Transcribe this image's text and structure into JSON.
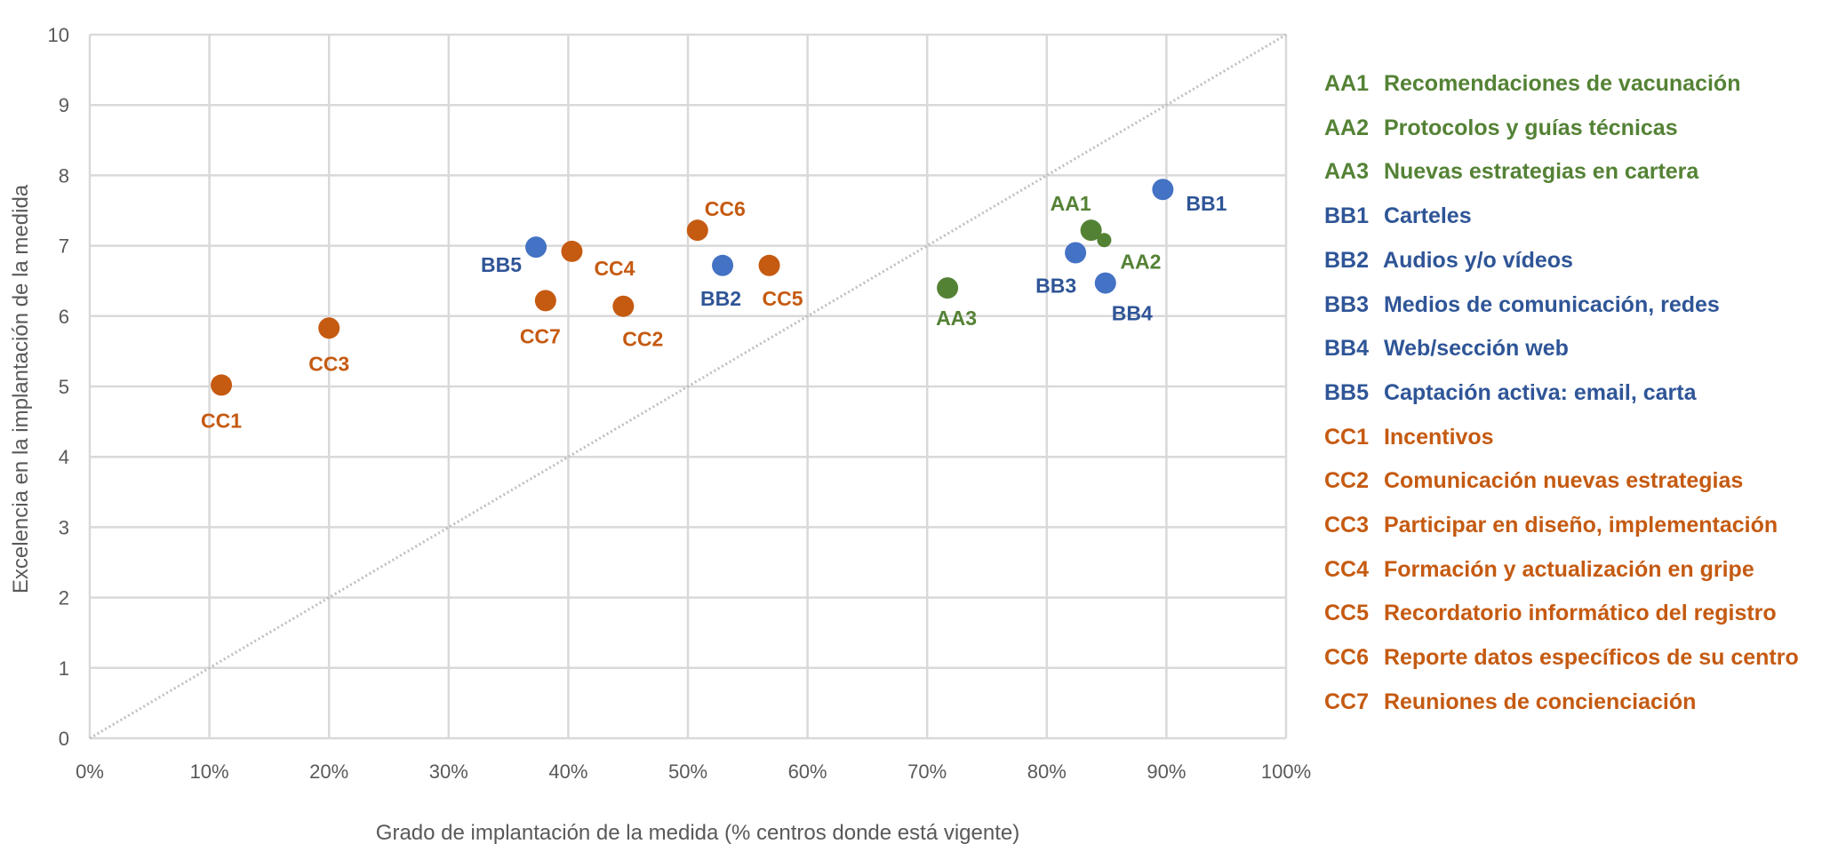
{
  "chart_data": {
    "type": "scatter",
    "xlabel": "Grado de implantación de la medida (% centros donde está vigente)",
    "ylabel": "Excelencia en la implantación de la medida",
    "xlim": [
      0,
      100
    ],
    "ylim": [
      0,
      10
    ],
    "x_ticks": [
      "0%",
      "10%",
      "20%",
      "30%",
      "40%",
      "50%",
      "60%",
      "70%",
      "80%",
      "90%",
      "100%"
    ],
    "y_ticks": [
      "0",
      "1",
      "2",
      "3",
      "4",
      "5",
      "6",
      "7",
      "8",
      "9",
      "10"
    ],
    "grid": true,
    "reference_line": "diagonal y = x/10, dotted grey",
    "legend_position": "right",
    "colors": {
      "AA": "#548235",
      "BB_point": "#4472C4",
      "BB_text": "#2F5597",
      "CC": "#C55A11",
      "reference": "#BFBFBF"
    },
    "points": [
      {
        "id": "AA1",
        "group": "AA",
        "x": 83.7,
        "y": 7.22
      },
      {
        "id": "AA2",
        "group": "AA",
        "x": 84.8,
        "y": 7.08
      },
      {
        "id": "AA3",
        "group": "AA",
        "x": 71.7,
        "y": 6.4
      },
      {
        "id": "BB1",
        "group": "BB",
        "x": 89.7,
        "y": 7.8
      },
      {
        "id": "BB2",
        "group": "BB",
        "x": 52.9,
        "y": 6.72
      },
      {
        "id": "BB3",
        "group": "BB",
        "x": 82.4,
        "y": 6.9
      },
      {
        "id": "BB4",
        "group": "BB",
        "x": 84.9,
        "y": 6.47
      },
      {
        "id": "BB5",
        "group": "BB",
        "x": 37.3,
        "y": 6.98
      },
      {
        "id": "CC1",
        "group": "CC",
        "x": 11.0,
        "y": 5.02
      },
      {
        "id": "CC2",
        "group": "CC",
        "x": 44.6,
        "y": 6.14
      },
      {
        "id": "CC3",
        "group": "CC",
        "x": 20.0,
        "y": 5.83
      },
      {
        "id": "CC4",
        "group": "CC",
        "x": 40.3,
        "y": 6.92
      },
      {
        "id": "CC5",
        "group": "CC",
        "x": 56.8,
        "y": 6.72
      },
      {
        "id": "CC6",
        "group": "CC",
        "x": 50.8,
        "y": 7.22
      },
      {
        "id": "CC7",
        "group": "CC",
        "x": 38.1,
        "y": 6.22
      }
    ],
    "legend": [
      {
        "code": "AA1",
        "group": "AA",
        "label": "Recomendaciones de vacunación"
      },
      {
        "code": "AA2",
        "group": "AA",
        "label": "Protocolos y guías técnicas"
      },
      {
        "code": "AA3",
        "group": "AA",
        "label": "Nuevas estrategias en cartera"
      },
      {
        "code": "BB1",
        "group": "BB",
        "label": "Carteles"
      },
      {
        "code": "BB2",
        "group": "BB",
        "label": "Audios y/o vídeos"
      },
      {
        "code": "BB3",
        "group": "BB",
        "label": "Medios de comunicación, redes"
      },
      {
        "code": "BB4",
        "group": "BB",
        "label": "Web/sección web"
      },
      {
        "code": "BB5",
        "group": "BB",
        "label": "Captación activa: email, carta"
      },
      {
        "code": "CC1",
        "group": "CC",
        "label": "Incentivos"
      },
      {
        "code": "CC2",
        "group": "CC",
        "label": "Comunicación nuevas estrategias"
      },
      {
        "code": "CC3",
        "group": "CC",
        "label": "Participar en diseño, implementación"
      },
      {
        "code": "CC4",
        "group": "CC",
        "label": "Formación y actualización en gripe"
      },
      {
        "code": "CC5",
        "group": "CC",
        "label": "Recordatorio informático del registro"
      },
      {
        "code": "CC6",
        "group": "CC",
        "label": "Reporte datos específicos de su centro"
      },
      {
        "code": "CC7",
        "group": "CC",
        "label": "Reuniones de concienciación"
      }
    ]
  }
}
